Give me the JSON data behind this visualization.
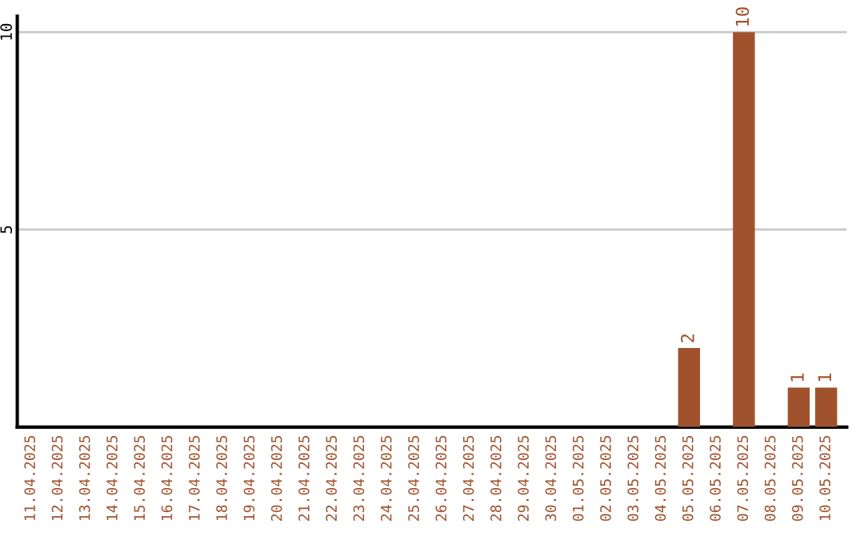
{
  "chart_data": {
    "type": "bar",
    "categories": [
      "11.04.2025",
      "12.04.2025",
      "13.04.2025",
      "14.04.2025",
      "15.04.2025",
      "16.04.2025",
      "17.04.2025",
      "18.04.2025",
      "19.04.2025",
      "20.04.2025",
      "21.04.2025",
      "22.04.2025",
      "23.04.2025",
      "24.04.2025",
      "25.04.2025",
      "26.04.2025",
      "27.04.2025",
      "28.04.2025",
      "29.04.2025",
      "30.04.2025",
      "01.05.2025",
      "02.05.2025",
      "03.05.2025",
      "04.05.2025",
      "05.05.2025",
      "06.05.2025",
      "07.05.2025",
      "08.05.2025",
      "09.05.2025",
      "10.05.2025"
    ],
    "values": [
      0,
      0,
      0,
      0,
      0,
      0,
      0,
      0,
      0,
      0,
      0,
      0,
      0,
      0,
      0,
      0,
      0,
      0,
      0,
      0,
      0,
      0,
      0,
      0,
      2,
      0,
      10,
      0,
      1,
      1
    ],
    "value_labels": [
      null,
      null,
      null,
      null,
      null,
      null,
      null,
      null,
      null,
      null,
      null,
      null,
      null,
      null,
      null,
      null,
      null,
      null,
      null,
      null,
      null,
      null,
      null,
      null,
      "2",
      null,
      "10",
      null,
      "1",
      "1"
    ],
    "color": "#a0522d",
    "ylim": [
      0,
      10.4
    ],
    "yticks": [
      5,
      10
    ],
    "grid": "y"
  }
}
